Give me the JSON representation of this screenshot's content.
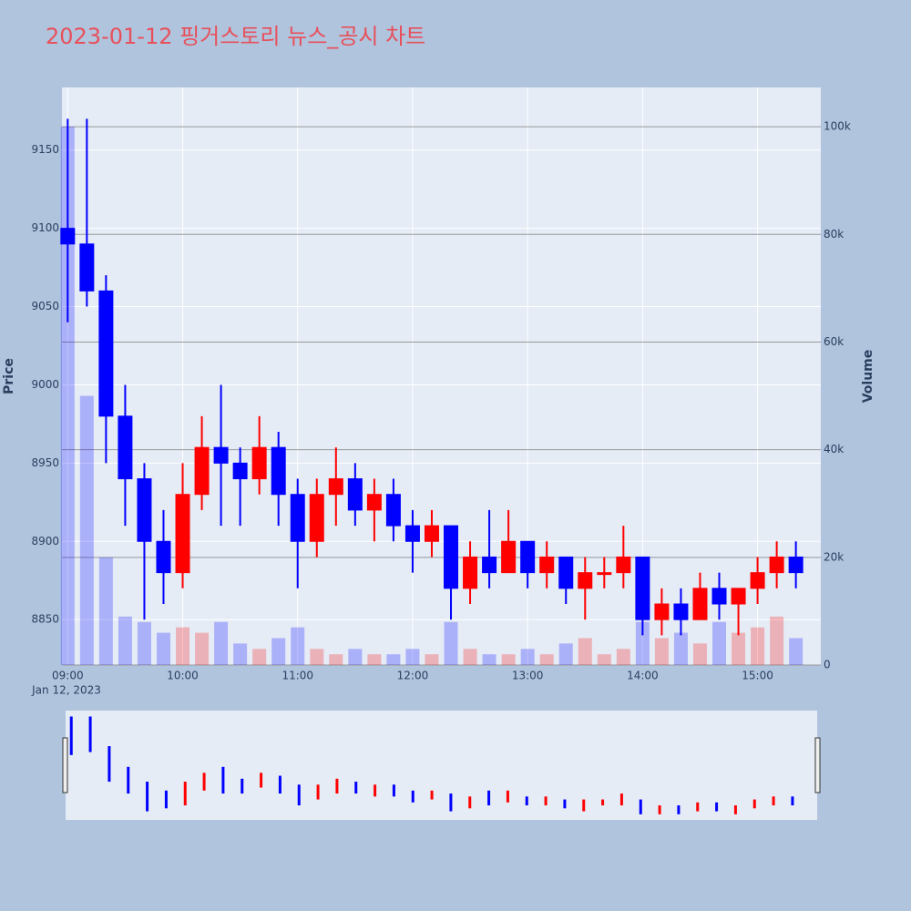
{
  "chart_data": {
    "type": "candlestick",
    "title": "2023-01-12 핑거스토리 뉴스_공시 차트",
    "y_label": "Price",
    "y2_label": "Volume",
    "x_date_label": "Jan 12, 2023",
    "increasing_color": "#ff0000",
    "decreasing_color": "#0000ff",
    "x": [
      "09:00",
      "09:10",
      "09:20",
      "09:30",
      "09:40",
      "09:50",
      "10:00",
      "10:10",
      "10:20",
      "10:30",
      "10:40",
      "10:50",
      "11:00",
      "11:10",
      "11:20",
      "11:30",
      "11:40",
      "11:50",
      "12:00",
      "12:10",
      "12:20",
      "12:30",
      "12:40",
      "12:50",
      "13:00",
      "13:10",
      "13:20",
      "13:30",
      "13:40",
      "13:50",
      "14:00",
      "14:10",
      "14:20",
      "14:30",
      "14:40",
      "14:50",
      "15:00",
      "15:10",
      "15:20"
    ],
    "open": [
      9100,
      9090,
      9060,
      8980,
      8940,
      8900,
      8880,
      8930,
      8960,
      8950,
      8940,
      8960,
      8930,
      8900,
      8930,
      8940,
      8920,
      8930,
      8910,
      8900,
      8910,
      8870,
      8890,
      8880,
      8900,
      8880,
      8890,
      8870,
      8880,
      8880,
      8890,
      8850,
      8860,
      8850,
      8870,
      8860,
      8870,
      8880,
      8890
    ],
    "high": [
      9170,
      9170,
      9070,
      9000,
      8950,
      8920,
      8950,
      8980,
      9000,
      8960,
      8980,
      8970,
      8940,
      8940,
      8960,
      8950,
      8940,
      8940,
      8920,
      8920,
      8910,
      8900,
      8920,
      8920,
      8900,
      8900,
      8890,
      8890,
      8890,
      8910,
      8890,
      8870,
      8870,
      8880,
      8880,
      8870,
      8890,
      8900,
      8900
    ],
    "low": [
      9040,
      9050,
      8950,
      8910,
      8850,
      8860,
      8870,
      8920,
      8910,
      8910,
      8930,
      8910,
      8870,
      8890,
      8910,
      8910,
      8900,
      8900,
      8880,
      8890,
      8850,
      8860,
      8870,
      8880,
      8870,
      8870,
      8860,
      8850,
      8870,
      8870,
      8840,
      8840,
      8840,
      8850,
      8850,
      8840,
      8860,
      8870,
      8870
    ],
    "close": [
      9090,
      9060,
      8980,
      8940,
      8900,
      8880,
      8930,
      8960,
      8950,
      8940,
      8960,
      8930,
      8900,
      8930,
      8940,
      8920,
      8930,
      8910,
      8900,
      8910,
      8870,
      8890,
      8880,
      8900,
      8880,
      8890,
      8870,
      8880,
      8880,
      8890,
      8850,
      8860,
      8850,
      8870,
      8860,
      8870,
      8880,
      8890,
      8880
    ],
    "volume": [
      100000,
      50000,
      20000,
      9000,
      8000,
      6000,
      7000,
      6000,
      8000,
      4000,
      3000,
      5000,
      7000,
      3000,
      2000,
      3000,
      2000,
      2000,
      3000,
      2000,
      8000,
      3000,
      2000,
      2000,
      3000,
      2000,
      4000,
      5000,
      2000,
      3000,
      8000,
      5000,
      6000,
      4000,
      8000,
      6000,
      7000,
      9000,
      5000
    ],
    "xlim": [
      "08:57",
      "15:33"
    ],
    "xticks": [
      "09:00",
      "10:00",
      "11:00",
      "12:00",
      "13:00",
      "14:00",
      "15:00"
    ],
    "ylim": [
      8821,
      9190
    ],
    "yticks": [
      8850,
      8900,
      8950,
      9000,
      9050,
      9100,
      9150
    ],
    "y2lim": [
      0,
      107300
    ],
    "y2ticks": [
      0,
      {
        "value": 20000,
        "label": "20k"
      },
      {
        "value": 40000,
        "label": "40k"
      },
      {
        "value": 60000,
        "label": "60k"
      },
      {
        "value": 80000,
        "label": "80k"
      },
      {
        "value": 100000,
        "label": "100k"
      }
    ],
    "grid": true
  }
}
